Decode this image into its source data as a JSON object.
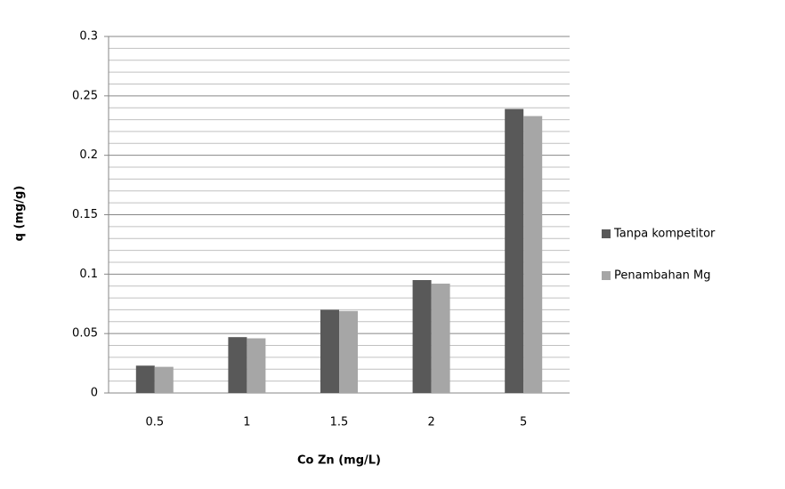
{
  "chart_data": {
    "type": "bar",
    "x_label": "Co Zn (mg/L)",
    "y_label": "q (mg/g)",
    "categories": [
      "0.5",
      "1",
      "1.5",
      "2",
      "5"
    ],
    "series": [
      {
        "name": "Tanpa kompetitor",
        "color": "#595959",
        "values": [
          0.023,
          0.047,
          0.07,
          0.095,
          0.239
        ]
      },
      {
        "name": "Penambahan Mg",
        "color": "#a6a6a6",
        "values": [
          0.022,
          0.046,
          0.069,
          0.092,
          0.233
        ]
      }
    ],
    "ylim": [
      0,
      0.3
    ],
    "yticks": [
      0,
      0.05,
      0.1,
      0.15,
      0.2,
      0.25,
      0.3
    ],
    "minor_yticks": [
      0.01,
      0.02,
      0.03,
      0.04,
      0.06,
      0.07,
      0.08,
      0.09,
      0.11,
      0.12,
      0.13,
      0.14,
      0.16,
      0.17,
      0.18,
      0.19,
      0.21,
      0.22,
      0.23,
      0.24,
      0.26,
      0.27,
      0.28,
      0.29
    ],
    "grid": true,
    "legend": "right"
  }
}
